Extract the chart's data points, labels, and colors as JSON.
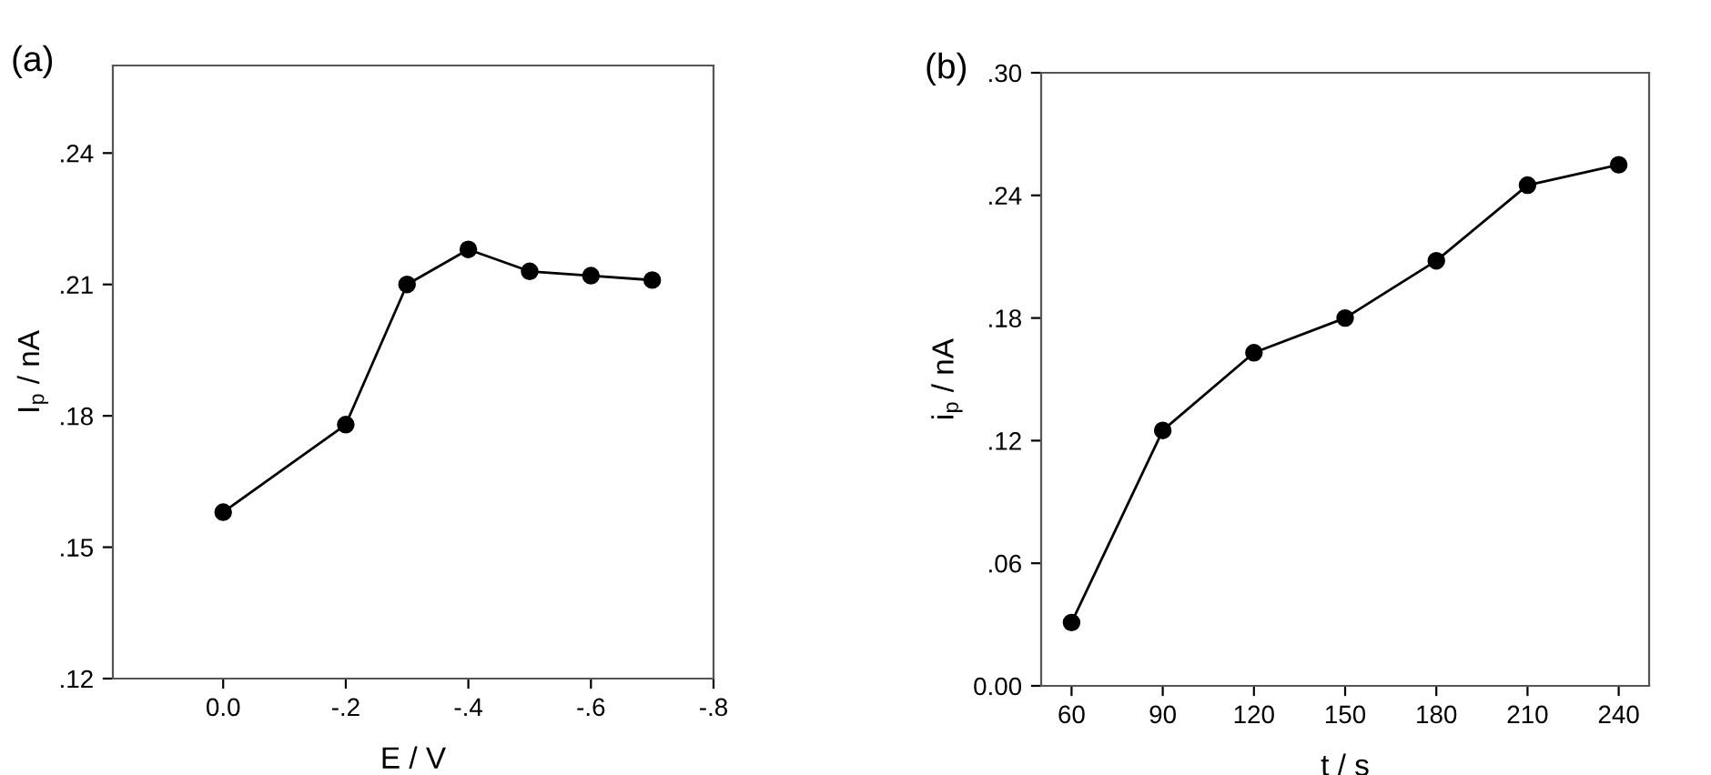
{
  "chart_data": [
    {
      "type": "line",
      "xlabel": "E / V",
      "ylabel": "I$_{p}$ / nA",
      "annotations": [
        "(a)"
      ],
      "marker": "circle",
      "line_style": "solid",
      "grid": false,
      "legend": false,
      "x": [
        0.0,
        -0.2,
        -0.3,
        -0.4,
        -0.5,
        -0.6,
        -0.7
      ],
      "series": [
        {
          "color": "#000000",
          "values": [
            0.158,
            0.178,
            0.21,
            0.218,
            0.213,
            0.212,
            0.211
          ]
        }
      ],
      "xlim": [
        0.18,
        -0.8
      ],
      "xticks": [
        {
          "value": 0.0,
          "label": "0.0"
        },
        {
          "value": -0.2,
          "label": "-.2"
        },
        {
          "value": -0.4,
          "label": "-.4"
        },
        {
          "value": -0.6,
          "label": "-.6"
        },
        {
          "value": -0.8,
          "label": "-.8"
        }
      ],
      "ylim": [
        0.12,
        0.26
      ],
      "yticks": [
        {
          "value": 0.12,
          "label": ".12"
        },
        {
          "value": 0.15,
          "label": ".15"
        },
        {
          "value": 0.18,
          "label": ".18"
        },
        {
          "value": 0.21,
          "label": ".21"
        },
        {
          "value": 0.24,
          "label": ".24"
        }
      ]
    },
    {
      "type": "line",
      "xlabel": "t / s",
      "ylabel": "i$_{p}$ / nA",
      "annotations": [
        "(b)"
      ],
      "marker": "circle",
      "line_style": "solid",
      "grid": false,
      "legend": false,
      "x": [
        60,
        90,
        120,
        150,
        180,
        210,
        240
      ],
      "series": [
        {
          "color": "#000000",
          "values": [
            0.031,
            0.125,
            0.163,
            0.18,
            0.208,
            0.245,
            0.255
          ]
        }
      ],
      "xlim": [
        50,
        250
      ],
      "xticks": [
        60,
        90,
        120,
        150,
        180,
        210,
        240
      ],
      "ylim": [
        0,
        0.3
      ],
      "yticks": [
        {
          "value": 0,
          "label": "0.00"
        },
        {
          "value": 0.06,
          "label": ".06"
        },
        {
          "value": 0.12,
          "label": ".12"
        },
        {
          "value": 0.18,
          "label": ".18"
        },
        {
          "value": 0.24,
          "label": ".24"
        },
        {
          "value": 0.3,
          "label": ".30"
        }
      ]
    }
  ]
}
